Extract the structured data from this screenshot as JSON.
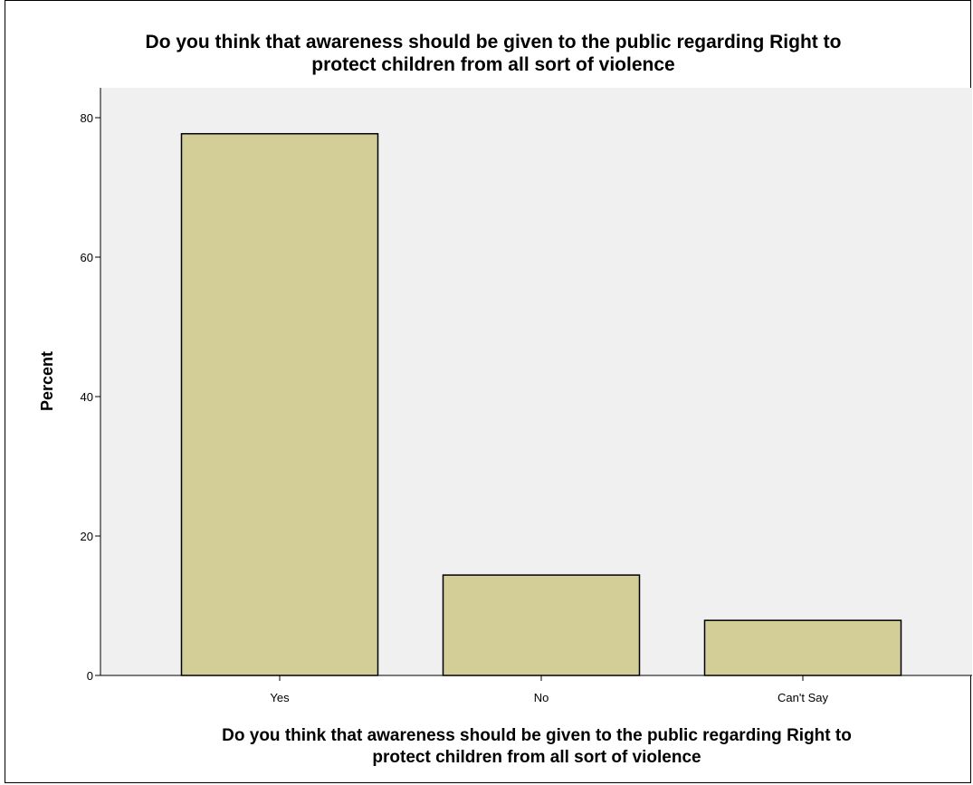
{
  "chart_data": {
    "type": "bar",
    "title_lines": [
      "Do you think that awareness should be given to the public regarding Right to",
      "protect children from all sort of violence"
    ],
    "xlabel_lines": [
      "Do you think that awareness should be given to the public regarding Right to",
      "protect children from all sort of violence"
    ],
    "ylabel": "Percent",
    "categories": [
      "Yes",
      "No",
      "Can't Say"
    ],
    "values": [
      77.7,
      14.4,
      7.9
    ],
    "ylim": [
      0,
      84
    ],
    "yticks": [
      0,
      20,
      40,
      60,
      80
    ],
    "grid": false,
    "legend": "none",
    "colors": {
      "bar_fill": "#d3ce98",
      "bar_stroke": "#000000",
      "plot_background": "#f0f0f0",
      "axis": "#000000"
    }
  }
}
